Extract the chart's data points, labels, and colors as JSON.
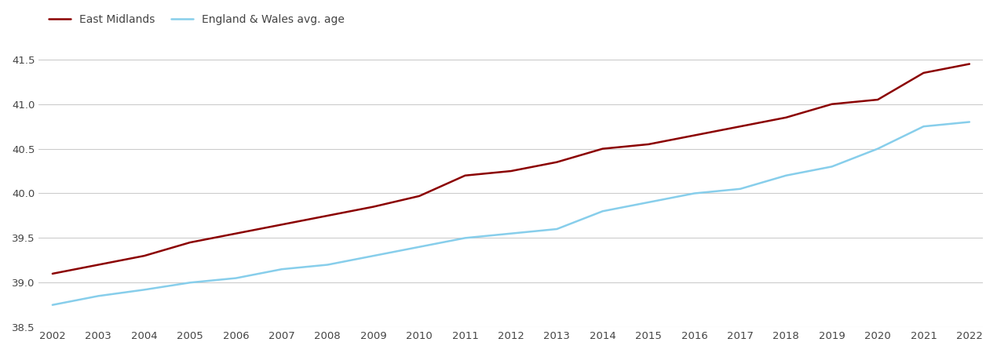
{
  "years": [
    2002,
    2003,
    2004,
    2005,
    2006,
    2007,
    2008,
    2009,
    2010,
    2011,
    2012,
    2013,
    2014,
    2015,
    2016,
    2017,
    2018,
    2019,
    2020,
    2021,
    2022
  ],
  "east_midlands": [
    39.1,
    39.2,
    39.3,
    39.45,
    39.55,
    39.65,
    39.75,
    39.85,
    39.97,
    40.2,
    40.25,
    40.35,
    40.5,
    40.55,
    40.65,
    40.75,
    40.85,
    41.0,
    41.05,
    41.35,
    41.45
  ],
  "england_wales": [
    38.75,
    38.85,
    38.92,
    39.0,
    39.05,
    39.15,
    39.2,
    39.3,
    39.4,
    39.5,
    39.55,
    39.6,
    39.8,
    39.9,
    40.0,
    40.05,
    40.2,
    40.3,
    40.5,
    40.75,
    40.8
  ],
  "east_midlands_color": "#8B0000",
  "england_wales_color": "#87CEEB",
  "east_midlands_label": "East Midlands",
  "england_wales_label": "England & Wales avg. age",
  "ylim_min": 38.5,
  "ylim_max": 41.7,
  "yticks": [
    38.5,
    39.0,
    39.5,
    40.0,
    40.5,
    41.0,
    41.5
  ],
  "background_color": "#ffffff",
  "grid_color": "#cccccc",
  "line_width": 1.8,
  "legend_fontsize": 10,
  "tick_fontsize": 9.5
}
